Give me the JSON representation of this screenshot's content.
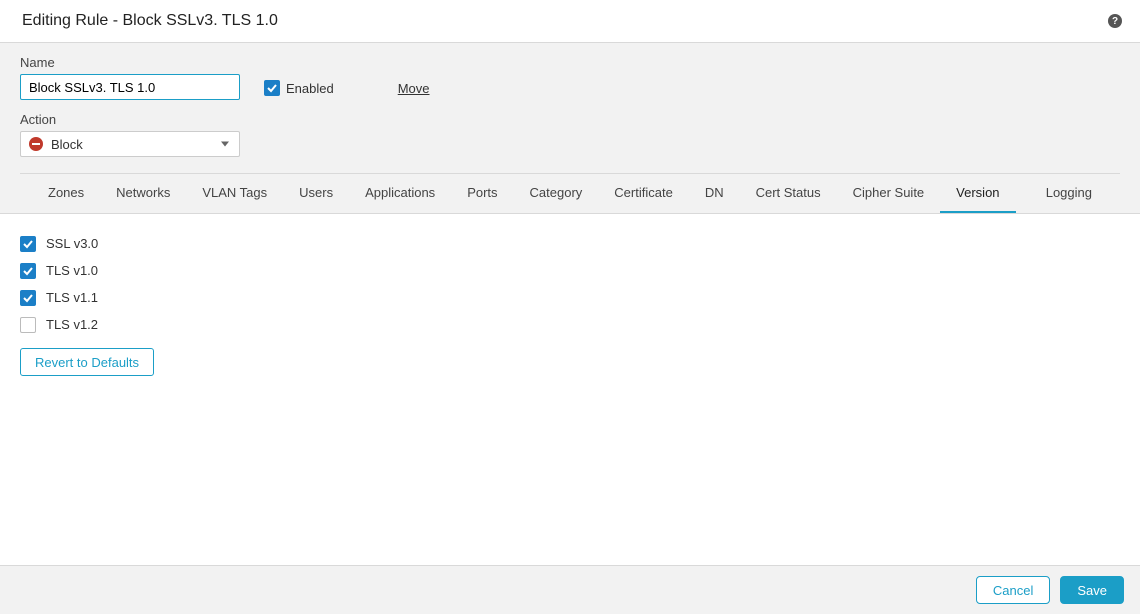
{
  "colors": {
    "accent": "#1b9ec7",
    "block_icon": "#c0392b",
    "form_bg": "#f2f2f2",
    "border": "#d9d9d9",
    "checkbox_checked": "#1b7fc7"
  },
  "header": {
    "title": "Editing Rule - Block SSLv3. TLS 1.0"
  },
  "form": {
    "name_label": "Name",
    "name_value": "Block SSLv3. TLS 1.0",
    "enabled_label": "Enabled",
    "enabled_checked": true,
    "move_label": "Move",
    "action_label": "Action",
    "action_value": "Block"
  },
  "tabs": {
    "items": [
      {
        "label": "Zones",
        "active": false
      },
      {
        "label": "Networks",
        "active": false
      },
      {
        "label": "VLAN Tags",
        "active": false
      },
      {
        "label": "Users",
        "active": false
      },
      {
        "label": "Applications",
        "active": false
      },
      {
        "label": "Ports",
        "active": false
      },
      {
        "label": "Category",
        "active": false
      },
      {
        "label": "Certificate",
        "active": false
      },
      {
        "label": "DN",
        "active": false
      },
      {
        "label": "Cert Status",
        "active": false
      },
      {
        "label": "Cipher Suite",
        "active": false
      },
      {
        "label": "Version",
        "active": true
      }
    ],
    "logging_label": "Logging"
  },
  "versions": [
    {
      "label": "SSL v3.0",
      "checked": true
    },
    {
      "label": "TLS v1.0",
      "checked": true
    },
    {
      "label": "TLS v1.1",
      "checked": true
    },
    {
      "label": "TLS v1.2",
      "checked": false
    }
  ],
  "buttons": {
    "revert": "Revert to Defaults",
    "cancel": "Cancel",
    "save": "Save"
  }
}
